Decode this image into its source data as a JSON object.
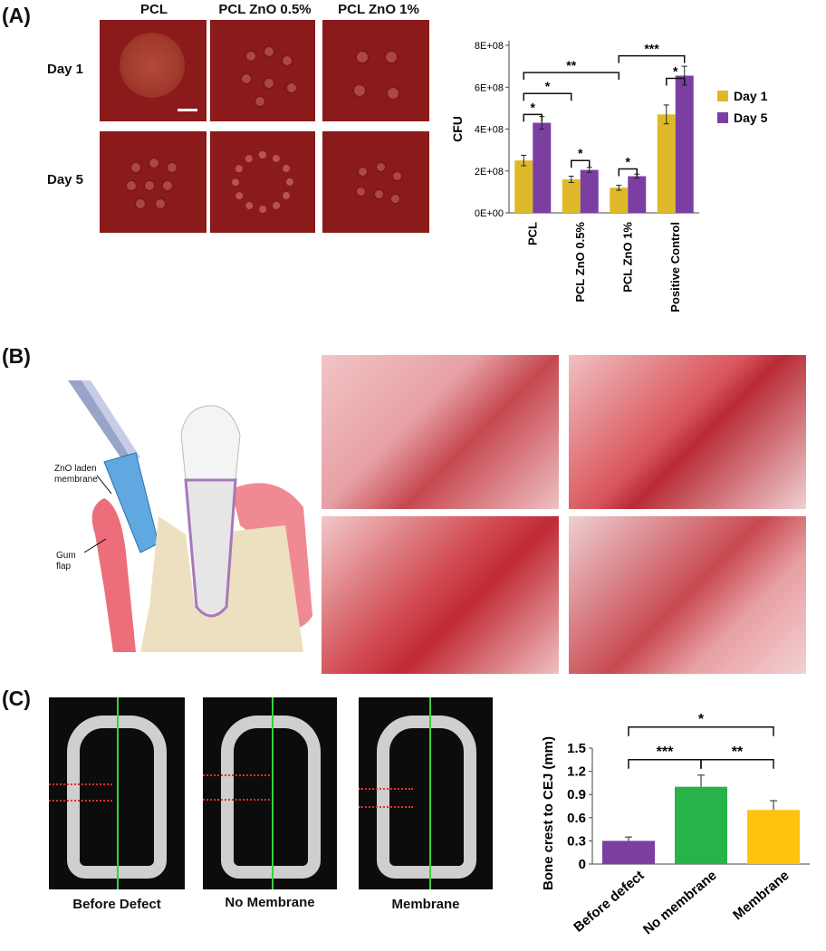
{
  "panels": {
    "a_label": "(A)",
    "b_label": "(B)",
    "c_label": "(C)"
  },
  "panel_a": {
    "col_headers": [
      "PCL",
      "PCL ZnO 0.5%",
      "PCL ZnO 1%"
    ],
    "row_headers": [
      "Day 1",
      "Day 5"
    ]
  },
  "panel_b": {
    "membrane_label": "ZnO laden membrane",
    "gum_label": "Gum flap"
  },
  "panel_c": {
    "captions": [
      "Before Defect",
      "No Membrane",
      "Membrane"
    ]
  },
  "colors": {
    "day1": "#e0b92a",
    "day5": "#7b3fa2",
    "before": "#7b3fa2",
    "nomembrane": "#27b24a",
    "membrane": "#ffc20e",
    "plate": "#8b1a1a"
  },
  "chart_data": [
    {
      "type": "bar",
      "categories": [
        "PCL",
        "PCL ZnO 0.5%",
        "PCL ZnO 1%",
        "Positive Control"
      ],
      "series": [
        {
          "name": "Day 1",
          "values": [
            250000000,
            160000000,
            120000000,
            470000000
          ],
          "errors": [
            25000000,
            15000000,
            12000000,
            45000000
          ]
        },
        {
          "name": "Day 5",
          "values": [
            430000000,
            205000000,
            175000000,
            655000000
          ],
          "errors": [
            30000000,
            12000000,
            10000000,
            45000000
          ]
        }
      ],
      "ylabel": "CFU",
      "yticks": [
        "0E+00",
        "2E+08",
        "4E+08",
        "6E+08",
        "8E+08"
      ],
      "ylim": [
        0,
        800000000
      ],
      "legend": "right",
      "significance": [
        "*",
        "*",
        "**",
        "*",
        "*",
        "***",
        "*"
      ]
    },
    {
      "type": "bar",
      "categories": [
        "Before defect",
        "No membrane",
        "Membrane"
      ],
      "values": [
        0.3,
        1.0,
        0.7
      ],
      "errors": [
        0.05,
        0.15,
        0.12
      ],
      "ylabel": "Bone crest to CEJ (mm)",
      "yticks": [
        "0",
        "0.3",
        "0.6",
        "0.9",
        "1.2",
        "1.5"
      ],
      "ylim": [
        0,
        1.5
      ],
      "significance": [
        "***",
        "**",
        "*"
      ]
    }
  ]
}
